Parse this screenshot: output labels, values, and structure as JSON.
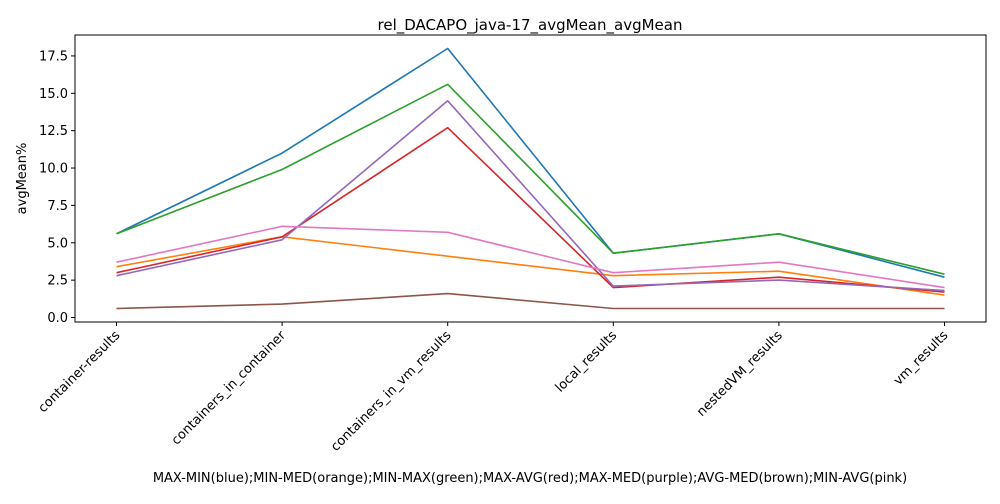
{
  "chart_data": {
    "type": "line",
    "title": "rel_DACAPO_java-17_avgMean_avgMean",
    "xlabel": "MAX-MIN(blue);MIN-MED(orange);MIN-MAX(green);MAX-AVG(red);MAX-MED(purple);AVG-MED(brown);MIN-AVG(pink)",
    "ylabel": "avgMean%",
    "categories": [
      "container-results",
      "containers_in_container",
      "containers_in_vm_results",
      "local_results",
      "nestedVM_results",
      "vm_results"
    ],
    "yticks": [
      "0.0",
      "2.5",
      "5.0",
      "7.5",
      "10.0",
      "12.5",
      "15.0",
      "17.5"
    ],
    "ylim": [
      -0.3,
      18.9
    ],
    "grid": false,
    "series": [
      {
        "values": [
          5.6,
          11.0,
          18.0,
          4.3,
          5.6,
          2.7
        ],
        "color": "#1f77b4"
      },
      {
        "values": [
          3.4,
          5.4,
          4.1,
          2.8,
          3.1,
          1.5
        ],
        "color": "#ff7f0e"
      },
      {
        "values": [
          5.6,
          9.9,
          15.6,
          4.3,
          5.6,
          2.9
        ],
        "color": "#2ca02c"
      },
      {
        "values": [
          3.0,
          5.4,
          12.7,
          2.0,
          2.7,
          1.7
        ],
        "color": "#d62728"
      },
      {
        "values": [
          2.8,
          5.2,
          14.5,
          2.1,
          2.5,
          1.8
        ],
        "color": "#9467bd"
      },
      {
        "values": [
          0.6,
          0.9,
          1.6,
          0.6,
          0.6,
          0.6
        ],
        "color": "#8c564b"
      },
      {
        "values": [
          3.7,
          6.1,
          5.7,
          3.0,
          3.7,
          2.0
        ],
        "color": "#e377c2"
      }
    ]
  }
}
